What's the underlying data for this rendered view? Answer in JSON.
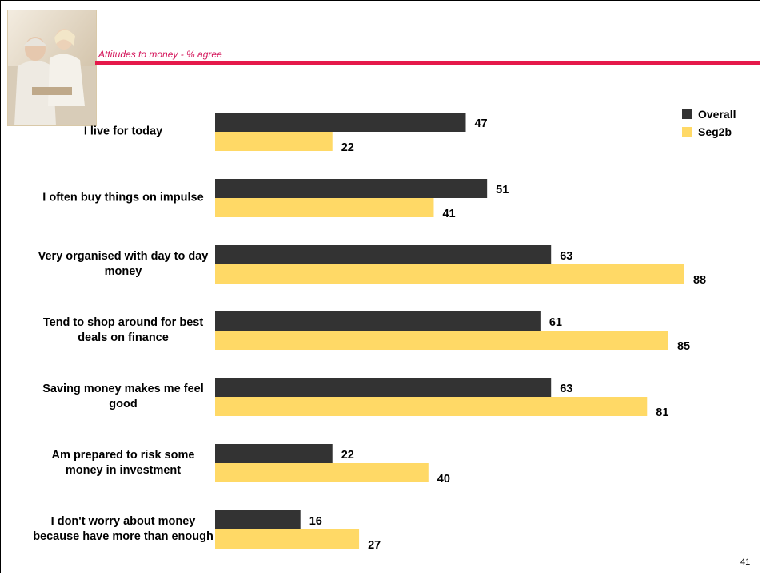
{
  "slide": {
    "subtitle": "Attitudes to money - % agree",
    "page_number": "41",
    "accent_color": "#e5194a"
  },
  "chart_data": {
    "type": "bar",
    "orientation": "horizontal",
    "categories": [
      "I live for today",
      "I often buy things on impulse",
      "Very organised with day to day money",
      "Tend to shop around for best deals on finance",
      "Saving money makes me feel good",
      "Am prepared to risk some money in investment",
      "I don't worry about money because have more than enough"
    ],
    "series": [
      {
        "name": "Overall",
        "color": "#333333",
        "values": [
          47,
          51,
          63,
          61,
          63,
          22,
          16
        ]
      },
      {
        "name": "Seg2b",
        "color": "#ffd966",
        "values": [
          22,
          41,
          88,
          85,
          81,
          40,
          27
        ]
      }
    ],
    "xlim": [
      0,
      100
    ],
    "data_labels": true,
    "grid": false,
    "legend": "top-right"
  }
}
